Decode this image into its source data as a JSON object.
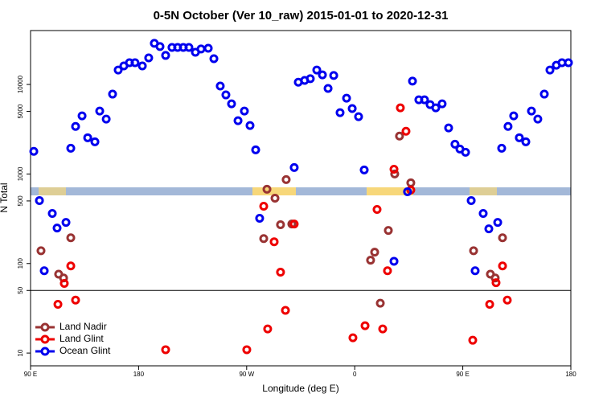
{
  "chart_data": {
    "type": "scatter",
    "title": "0-5N October (Ver 10_raw)   2015-01-01 to 2020-12-31",
    "xlabel": "Longitude (deg E)",
    "ylabel": "N Total",
    "log_y": true,
    "legend": "lower left",
    "hline": 50,
    "xlim": [
      90,
      540
    ],
    "xticks": [
      {
        "value": 90,
        "label": "90 E"
      },
      180,
      {
        "value": 270,
        "label": "90 W"
      },
      {
        "value": 360,
        "label": "0"
      },
      {
        "value": 450,
        "label": "90 E"
      },
      {
        "value": 540,
        "label": "180"
      }
    ],
    "ylim": [
      7.2,
      40000
    ],
    "yticks": [
      10,
      50,
      100,
      500,
      1000,
      5000,
      10000
    ],
    "series": [
      {
        "name": "Land Nadir",
        "color": "#993333",
        "x": [
          98.7,
          113.4,
          117.5,
          123.5,
          284.2,
          286.9,
          293.6,
          298.2,
          302.9,
          307.6,
          373.2,
          376.6,
          381.3,
          388.0,
          393.3,
          397.3,
          406.7,
          459.0,
          473.0,
          477.0,
          483.1
        ],
        "values": [
          139,
          76,
          69,
          194,
          190,
          675,
          537,
          271,
          865,
          276,
          109,
          134,
          36,
          234,
          1000,
          2650,
          796,
          139,
          76,
          69,
          194
        ]
      },
      {
        "name": "Land Glint",
        "color": "#ee0000",
        "x": [
          112.8,
          118.1,
          123.5,
          127.5,
          202.5,
          270.1,
          284.2,
          287.5,
          292.9,
          298.2,
          302.3,
          309.6,
          358.5,
          368.6,
          378.6,
          383.3,
          387.3,
          392.7,
          398.0,
          402.7,
          406.7,
          458.3,
          472.4,
          477.7,
          483.1,
          487.1
        ],
        "values": [
          35,
          60,
          94,
          39,
          10.9,
          10.9,
          436,
          18.6,
          175,
          80,
          30,
          276,
          14.8,
          20.2,
          402,
          18.6,
          83,
          1130,
          5480,
          3000,
          661,
          13.9,
          35,
          61,
          94,
          39
        ]
      },
      {
        "name": "Ocean Glint",
        "color": "#0000ee",
        "x": [
          92.7,
          97.4,
          101.4,
          108.1,
          112.1,
          119.5,
          123.5,
          127.5,
          132.9,
          137.6,
          143.6,
          147.6,
          153.0,
          158.3,
          163.0,
          167.7,
          172.4,
          177.0,
          183.1,
          188.4,
          193.1,
          197.8,
          202.5,
          207.8,
          212.5,
          217.2,
          221.9,
          227.3,
          232.0,
          238.0,
          242.7,
          248.0,
          252.7,
          257.4,
          262.8,
          268.1,
          272.8,
          277.5,
          280.8,
          309.6,
          313.0,
          318.3,
          323.0,
          328.4,
          333.1,
          337.8,
          342.5,
          347.8,
          353.2,
          357.9,
          363.2,
          367.9,
          392.7,
          404.0,
          408.1,
          413.4,
          418.1,
          422.8,
          427.5,
          432.8,
          438.2,
          443.5,
          447.6,
          452.3,
          457.0,
          460.3,
          467.0,
          471.7,
          479.1,
          482.4,
          487.7,
          492.4,
          497.1,
          502.5,
          507.2,
          512.5,
          517.9,
          522.6,
          527.9,
          532.6,
          538.0
        ],
        "values": [
          1790,
          505,
          83,
          362,
          249,
          288,
          1940,
          3400,
          4460,
          2540,
          2290,
          5050,
          4100,
          7800,
          14500,
          16100,
          17500,
          17500,
          16100,
          19800,
          28800,
          26500,
          21100,
          25900,
          25900,
          25900,
          25900,
          22900,
          24900,
          25400,
          19400,
          9600,
          7640,
          6080,
          3940,
          5050,
          3480,
          1860,
          320,
          1180,
          10600,
          11100,
          11600,
          14500,
          12800,
          9020,
          12600,
          4840,
          7030,
          5380,
          4370,
          1110,
          106,
          634,
          10900,
          6740,
          6740,
          5960,
          5480,
          6080,
          3270,
          2150,
          1900,
          1750,
          505,
          83,
          362,
          244,
          288,
          1940,
          3400,
          4460,
          2540,
          2290,
          5050,
          4100,
          7800,
          14500,
          16400,
          17500,
          17500
        ]
      }
    ]
  }
}
